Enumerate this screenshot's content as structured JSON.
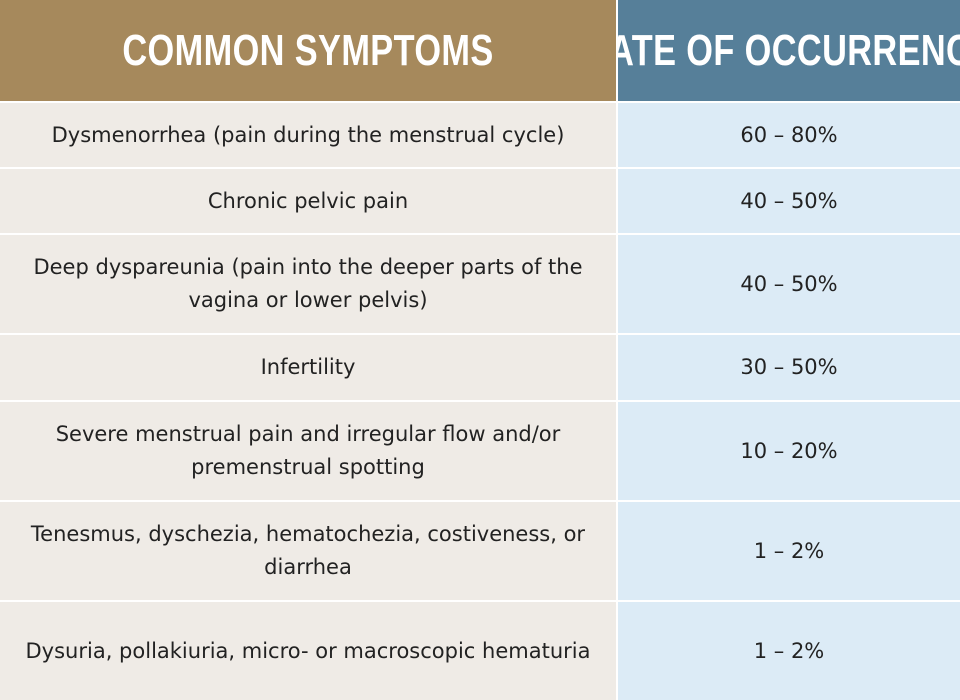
{
  "chart_data": {
    "type": "table",
    "columns": [
      "COMMON SYMPTOMS",
      "RATE OF OCCURRENCE"
    ],
    "rows": [
      {
        "symptom": "Dysmenorrhea (pain during the menstrual cycle)",
        "rate": "60 – 80%"
      },
      {
        "symptom": "Chronic pelvic pain",
        "rate": "40 – 50%"
      },
      {
        "symptom": "Deep dyspareunia (pain into the deeper parts of the vagina or lower pelvis)",
        "rate": "40 – 50%"
      },
      {
        "symptom": "Infertility",
        "rate": "30 – 50%"
      },
      {
        "symptom": "Severe menstrual pain and irregular flow and/or premenstrual spotting",
        "rate": "10 – 20%"
      },
      {
        "symptom": "Tenesmus, dyschezia, hematochezia, costiveness, or diarrhea",
        "rate": "1 – 2%"
      },
      {
        "symptom": "Dysuria, pollakiuria, micro- or macroscopic hematuria",
        "rate": "1 – 2%"
      }
    ]
  },
  "colors": {
    "left_header": "#a6895c",
    "right_header": "#567f99",
    "left_cells": "#efebe6",
    "right_cells": "#dcebf6",
    "text": "#222222"
  }
}
